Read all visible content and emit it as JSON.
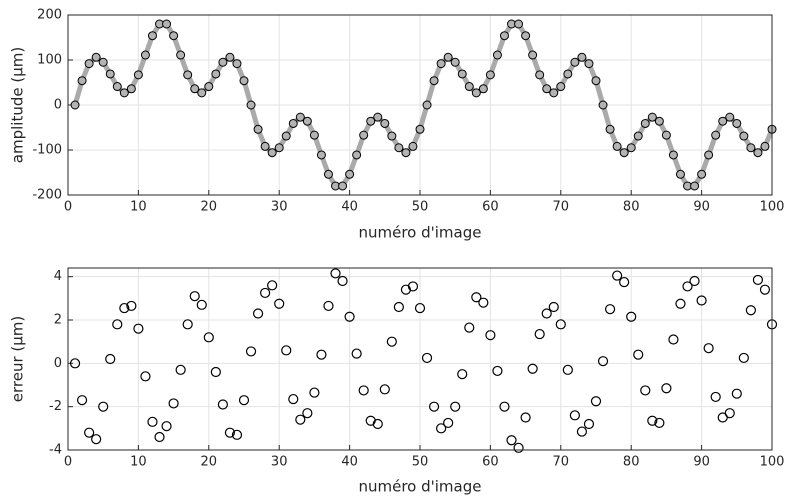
{
  "chart_data": [
    {
      "type": "line",
      "x_label": "numéro d'image",
      "y_label": "amplitude (μm)",
      "color": "#aaaaaa",
      "marker_color": "#b3b3b3",
      "grid": true,
      "x": [
        1,
        2,
        3,
        4,
        5,
        6,
        7,
        8,
        9,
        10,
        11,
        12,
        13,
        14,
        15,
        16,
        17,
        18,
        19,
        20,
        21,
        22,
        23,
        24,
        25,
        26,
        27,
        28,
        29,
        30,
        31,
        32,
        33,
        34,
        35,
        36,
        37,
        38,
        39,
        40,
        41,
        42,
        43,
        44,
        45,
        46,
        47,
        48,
        49,
        50,
        51,
        52,
        53,
        54,
        55,
        56,
        57,
        58,
        59,
        60,
        61,
        62,
        63,
        64,
        65,
        66,
        67,
        68,
        69,
        70,
        71,
        72,
        73,
        74,
        75,
        76,
        77,
        78,
        79,
        80,
        81,
        82,
        83,
        84,
        85,
        86,
        87,
        88,
        89,
        90,
        91,
        92,
        93,
        94,
        95,
        96,
        97,
        98,
        99,
        100
      ],
      "values": [
        0,
        54,
        92,
        106,
        95,
        69,
        41,
        27,
        36,
        67,
        111,
        154,
        180,
        180,
        154,
        111,
        67,
        36,
        27,
        41,
        69,
        95,
        106,
        92,
        54,
        0,
        -54,
        -92,
        -106,
        -95,
        -69,
        -41,
        -27,
        -36,
        -67,
        -111,
        -154,
        -180,
        -180,
        -154,
        -111,
        -67,
        -36,
        -27,
        -41,
        -69,
        -95,
        -106,
        -92,
        -54,
        0,
        54,
        92,
        106,
        95,
        69,
        41,
        27,
        36,
        67,
        111,
        154,
        180,
        180,
        154,
        111,
        67,
        36,
        27,
        41,
        69,
        95,
        106,
        92,
        54,
        0,
        -54,
        -92,
        -106,
        -95,
        -69,
        -41,
        -27,
        -36,
        -67,
        -111,
        -154,
        -180,
        -180,
        -154,
        -111,
        -67,
        -36,
        -27,
        -41,
        -69,
        -95,
        -106,
        -92,
        -54
      ],
      "xlim": [
        0,
        100
      ],
      "xticks": [
        0,
        10,
        20,
        30,
        40,
        50,
        60,
        70,
        80,
        90,
        100
      ],
      "ylim": [
        -200,
        200
      ],
      "yticks": [
        -200,
        -100,
        0,
        100,
        200
      ]
    },
    {
      "type": "scatter",
      "x_label": "numéro d'image",
      "y_label": "erreur (μm)",
      "color": "#000000",
      "grid": true,
      "x": [
        1,
        2,
        3,
        4,
        5,
        6,
        7,
        8,
        9,
        10,
        11,
        12,
        13,
        14,
        15,
        16,
        17,
        18,
        19,
        20,
        21,
        22,
        23,
        24,
        25,
        26,
        27,
        28,
        29,
        30,
        31,
        32,
        33,
        34,
        35,
        36,
        37,
        38,
        39,
        40,
        41,
        42,
        43,
        44,
        45,
        46,
        47,
        48,
        49,
        50,
        51,
        52,
        53,
        54,
        55,
        56,
        57,
        58,
        59,
        60,
        61,
        62,
        63,
        64,
        65,
        66,
        67,
        68,
        69,
        70,
        71,
        72,
        73,
        74,
        75,
        76,
        77,
        78,
        79,
        80,
        81,
        82,
        83,
        84,
        85,
        86,
        87,
        88,
        89,
        90,
        91,
        92,
        93,
        94,
        95,
        96,
        97,
        98,
        99,
        100
      ],
      "values": [
        0,
        -1.7,
        -3.2,
        -3.5,
        -2,
        0.2,
        1.8,
        2.55,
        2.65,
        1.6,
        -0.6,
        -2.7,
        -3.4,
        -2.9,
        -1.85,
        -0.3,
        1.8,
        3.1,
        2.7,
        1.2,
        -0.4,
        -1.9,
        -3.2,
        -3.3,
        -1.7,
        0.55,
        2.3,
        3.25,
        3.6,
        2.75,
        0.6,
        -1.65,
        -2.6,
        -2.3,
        -1.35,
        0.4,
        2.65,
        4.15,
        3.8,
        2.15,
        0.45,
        -1.25,
        -2.65,
        -2.8,
        -1.2,
        1,
        2.6,
        3.4,
        3.55,
        2.55,
        0.25,
        -2,
        -3,
        -2.75,
        -2,
        -0.5,
        1.65,
        3.05,
        2.8,
        1.3,
        -0.35,
        -2,
        -3.55,
        -3.9,
        -2.5,
        -0.25,
        1.35,
        2.3,
        2.6,
        1.8,
        -0.3,
        -2.4,
        -3.15,
        -2.8,
        -1.75,
        0.1,
        2.5,
        4.05,
        3.75,
        2.15,
        0.4,
        -1.25,
        -2.65,
        -2.75,
        -1.15,
        1.1,
        2.75,
        3.55,
        3.8,
        2.9,
        0.7,
        -1.55,
        -2.5,
        -2.3,
        -1.4,
        0.25,
        2.45,
        3.85,
        3.4,
        1.8
      ],
      "xlim": [
        0,
        100
      ],
      "xticks": [
        0,
        10,
        20,
        30,
        40,
        50,
        60,
        70,
        80,
        90,
        100
      ],
      "ylim": [
        -4,
        4.4
      ],
      "yticks": [
        -4,
        -2,
        0,
        2,
        4
      ]
    }
  ]
}
